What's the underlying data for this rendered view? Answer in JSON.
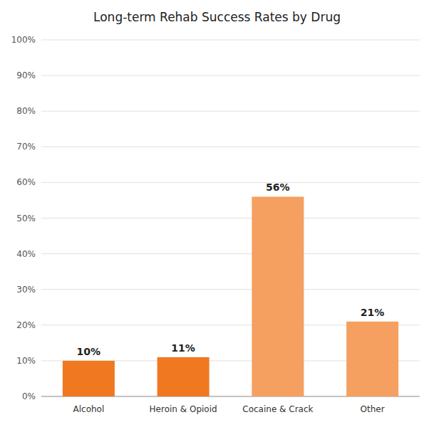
{
  "chart_data": {
    "type": "bar",
    "title": "Long-term Rehab Success Rates by Drug",
    "categories": [
      "Alcohol",
      "Heroin & Opioid",
      "Cocaine & Crack",
      "Other"
    ],
    "values": [
      10,
      11,
      56,
      21
    ],
    "value_labels": [
      "10%",
      "11%",
      "56%",
      "21%"
    ],
    "data_labels": true,
    "colors": [
      "#F07820",
      "#F07820",
      "#F5A060",
      "#F5A060"
    ],
    "ylim": [
      0,
      100
    ],
    "yticks": [
      {
        "value": 0,
        "label": "0%"
      },
      {
        "value": 10,
        "label": "10%"
      },
      {
        "value": 20,
        "label": "20%"
      },
      {
        "value": 30,
        "label": "30%"
      },
      {
        "value": 40,
        "label": "40%"
      },
      {
        "value": 50,
        "label": "50%"
      },
      {
        "value": 60,
        "label": "60%"
      },
      {
        "value": 70,
        "label": "70%"
      },
      {
        "value": 80,
        "label": "80%"
      },
      {
        "value": 90,
        "label": "90%"
      },
      {
        "value": 100,
        "label": "100%"
      }
    ],
    "grid": true
  }
}
